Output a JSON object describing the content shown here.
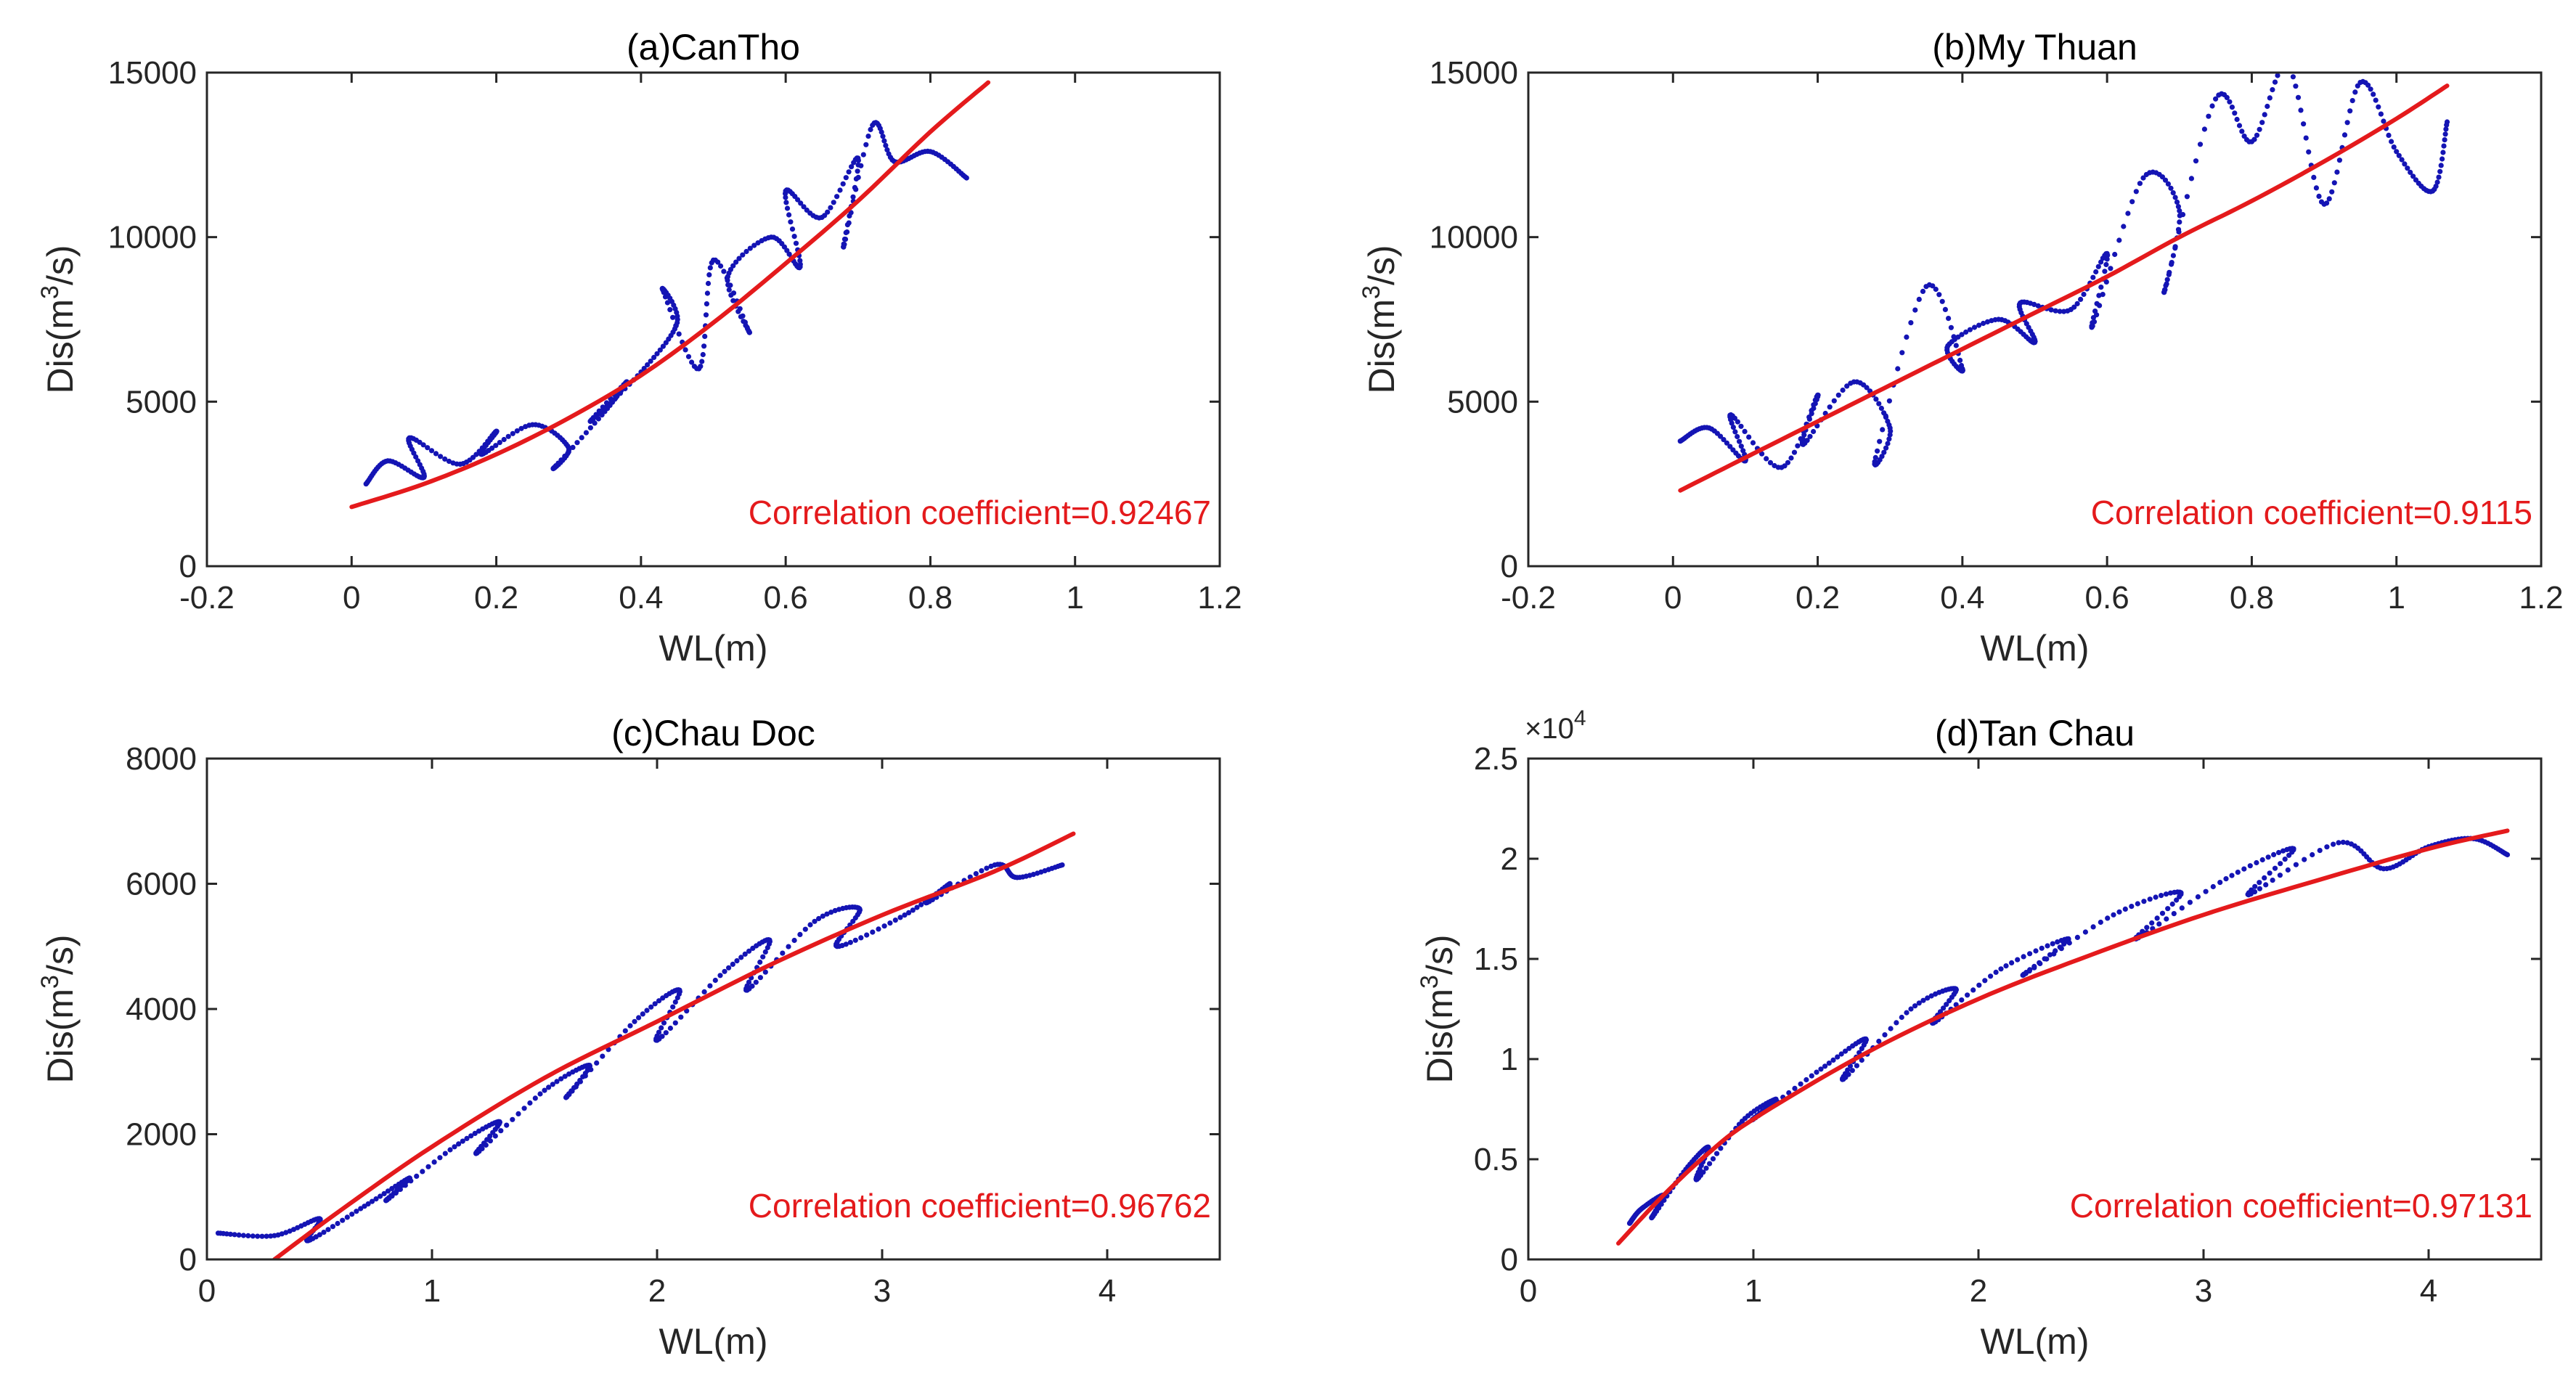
{
  "colors": {
    "observed": "#1414b4",
    "fit": "#e41a1c",
    "axis": "#262626"
  },
  "chart_data": [
    {
      "type": "scatter",
      "title": "(a)CanTho",
      "xlabel": "WL(m)",
      "ylabel": "Dis(m3/s)",
      "ylabel_parts": [
        "Dis(m",
        "3",
        "/s)"
      ],
      "xlim": [
        -0.2,
        1.2
      ],
      "ylim": [
        0,
        15000
      ],
      "xticks": [
        -0.2,
        0,
        0.2,
        0.4,
        0.6,
        0.8,
        1,
        1.2
      ],
      "yticks": [
        0,
        5000,
        10000,
        15000
      ],
      "xtick_labels": [
        "-0.2",
        "0",
        "0.2",
        "0.4",
        "0.6",
        "0.8",
        "1",
        "1.2"
      ],
      "ytick_labels": [
        "0",
        "5000",
        "10000",
        "15000"
      ],
      "y_multiplier": "",
      "annotation": "Correlation coefficient=0.92467",
      "annotation_position": "bottom-right",
      "grid": false,
      "series": [
        {
          "kind": "dotted-loop",
          "x": [
            0.02,
            0.05,
            0.1,
            0.08,
            0.15,
            0.2,
            0.18,
            0.25,
            0.3,
            0.28,
            0.35,
            0.38,
            0.33,
            0.4,
            0.45,
            0.43,
            0.48,
            0.5,
            0.55,
            0.52,
            0.58,
            0.62,
            0.6,
            0.65,
            0.7,
            0.68,
            0.72,
            0.75,
            0.8,
            0.85
          ],
          "y": [
            2500,
            3200,
            2700,
            3900,
            3100,
            4100,
            3400,
            4300,
            3600,
            3000,
            4700,
            5600,
            4400,
            5900,
            7400,
            8400,
            6000,
            9300,
            7100,
            8800,
            10000,
            9100,
            11400,
            10600,
            12400,
            9700,
            13400,
            12300,
            12600,
            11800
          ]
        },
        {
          "kind": "fit",
          "x": [
            0,
            0.1,
            0.2,
            0.3,
            0.4,
            0.5,
            0.6,
            0.7,
            0.8,
            0.88
          ],
          "y": [
            1800,
            2500,
            3400,
            4500,
            5800,
            7400,
            9200,
            11100,
            13200,
            14700
          ]
        }
      ]
    },
    {
      "type": "scatter",
      "title": "(b)My Thuan",
      "xlabel": "WL(m)",
      "ylabel": "Dis(m3/s)",
      "ylabel_parts": [
        "Dis(m",
        "3",
        "/s)"
      ],
      "xlim": [
        -0.2,
        1.2
      ],
      "ylim": [
        0,
        15000
      ],
      "xticks": [
        -0.2,
        0,
        0.2,
        0.4,
        0.6,
        0.8,
        1,
        1.2
      ],
      "yticks": [
        0,
        5000,
        10000,
        15000
      ],
      "xtick_labels": [
        "-0.2",
        "0",
        "0.2",
        "0.4",
        "0.6",
        "0.8",
        "1",
        "1.2"
      ],
      "ytick_labels": [
        "0",
        "5000",
        "10000",
        "15000"
      ],
      "y_multiplier": "",
      "annotation": "Correlation coefficient=0.9115",
      "annotation_position": "bottom-right",
      "grid": false,
      "series": [
        {
          "kind": "dotted-loop",
          "x": [
            0.01,
            0.05,
            0.1,
            0.08,
            0.15,
            0.2,
            0.18,
            0.25,
            0.3,
            0.28,
            0.35,
            0.4,
            0.38,
            0.45,
            0.5,
            0.48,
            0.55,
            0.6,
            0.58,
            0.65,
            0.7,
            0.68,
            0.75,
            0.8,
            0.85,
            0.9,
            0.95,
            1.0,
            1.05,
            1.07
          ],
          "y": [
            3800,
            4200,
            3200,
            4600,
            3000,
            5200,
            3700,
            5600,
            4200,
            3300,
            8500,
            6000,
            6700,
            7500,
            6800,
            8000,
            7800,
            9500,
            7300,
            11800,
            10800,
            8400,
            14200,
            12900,
            15200,
            11000,
            14700,
            12600,
            11400,
            13500
          ]
        },
        {
          "kind": "fit",
          "x": [
            0.01,
            0.1,
            0.2,
            0.3,
            0.4,
            0.5,
            0.6,
            0.7,
            0.8,
            0.9,
            1.0,
            1.07
          ],
          "y": [
            2300,
            3300,
            4400,
            5500,
            6600,
            7700,
            8800,
            10000,
            11100,
            12300,
            13600,
            14600
          ]
        }
      ]
    },
    {
      "type": "scatter",
      "title": "(c)Chau Doc",
      "xlabel": "WL(m)",
      "ylabel": "Dis(m3/s)",
      "ylabel_parts": [
        "Dis(m",
        "3",
        "/s)"
      ],
      "xlim": [
        0,
        4.5
      ],
      "ylim": [
        0,
        8000
      ],
      "xticks": [
        0,
        1,
        2,
        3,
        4
      ],
      "yticks": [
        0,
        2000,
        4000,
        6000,
        8000
      ],
      "xtick_labels": [
        "0",
        "1",
        "2",
        "3",
        "4"
      ],
      "ytick_labels": [
        "0",
        "2000",
        "4000",
        "6000",
        "8000"
      ],
      "y_multiplier": "",
      "annotation": "Correlation coefficient=0.96762",
      "annotation_position": "bottom-right",
      "grid": false,
      "series": [
        {
          "kind": "dotted-loop",
          "x": [
            0.05,
            0.3,
            0.5,
            0.45,
            0.7,
            0.9,
            0.8,
            1.1,
            1.3,
            1.2,
            1.5,
            1.7,
            1.6,
            1.9,
            2.1,
            2.0,
            2.3,
            2.5,
            2.4,
            2.7,
            2.9,
            2.8,
            3.1,
            3.3,
            3.2,
            3.5,
            3.6,
            3.8
          ],
          "y": [
            420,
            380,
            650,
            300,
            850,
            1300,
            950,
            1800,
            2200,
            1700,
            2700,
            3100,
            2600,
            3800,
            4300,
            3500,
            4600,
            5100,
            4300,
            5400,
            5600,
            5000,
            5500,
            6000,
            5700,
            6300,
            6100,
            6300
          ]
        },
        {
          "kind": "fit",
          "x": [
            0.3,
            0.6,
            1.0,
            1.5,
            2.0,
            2.5,
            3.0,
            3.5,
            3.85
          ],
          "y": [
            0,
            800,
            1800,
            2900,
            3800,
            4700,
            5500,
            6200,
            6800
          ]
        }
      ]
    },
    {
      "type": "scatter",
      "title": "(d)Tan Chau",
      "xlabel": "WL(m)",
      "ylabel": "Dis(m3/s)",
      "ylabel_parts": [
        "Dis(m",
        "3",
        "/s)"
      ],
      "xlim": [
        0,
        4.5
      ],
      "ylim": [
        0,
        25000
      ],
      "xticks": [
        0,
        1,
        2,
        3,
        4
      ],
      "yticks": [
        0,
        5000,
        10000,
        15000,
        20000,
        25000
      ],
      "xtick_labels": [
        "0",
        "1",
        "2",
        "3",
        "4"
      ],
      "ytick_labels": [
        "0",
        "0.5",
        "1",
        "1.5",
        "2",
        "2.5"
      ],
      "y_multiplier": "×10",
      "y_multiplier_exp": "4",
      "annotation": "Correlation coefficient=0.97131",
      "annotation_position": "bottom-right",
      "grid": false,
      "series": [
        {
          "kind": "dotted-loop",
          "x": [
            0.45,
            0.5,
            0.6,
            0.55,
            0.7,
            0.8,
            0.75,
            0.95,
            1.1,
            1.0,
            1.3,
            1.5,
            1.4,
            1.7,
            1.9,
            1.8,
            2.1,
            2.4,
            2.2,
            2.6,
            2.9,
            2.7,
            3.1,
            3.4,
            3.2,
            3.6,
            3.8,
            4.0,
            4.2,
            4.35
          ],
          "y": [
            1800,
            2500,
            3200,
            2100,
            4500,
            5600,
            4000,
            6900,
            8000,
            7000,
            9500,
            11000,
            9000,
            12500,
            13500,
            11800,
            14500,
            16000,
            14200,
            17200,
            18300,
            16000,
            19000,
            20500,
            18200,
            20800,
            19500,
            20600,
            21000,
            20200
          ]
        },
        {
          "kind": "fit",
          "x": [
            0.4,
            0.6,
            0.8,
            1.0,
            1.5,
            2.0,
            2.5,
            3.0,
            3.5,
            4.0,
            4.35
          ],
          "y": [
            800,
            3200,
            5300,
            7000,
            10300,
            13000,
            15200,
            17200,
            18900,
            20500,
            21400
          ]
        }
      ]
    }
  ]
}
